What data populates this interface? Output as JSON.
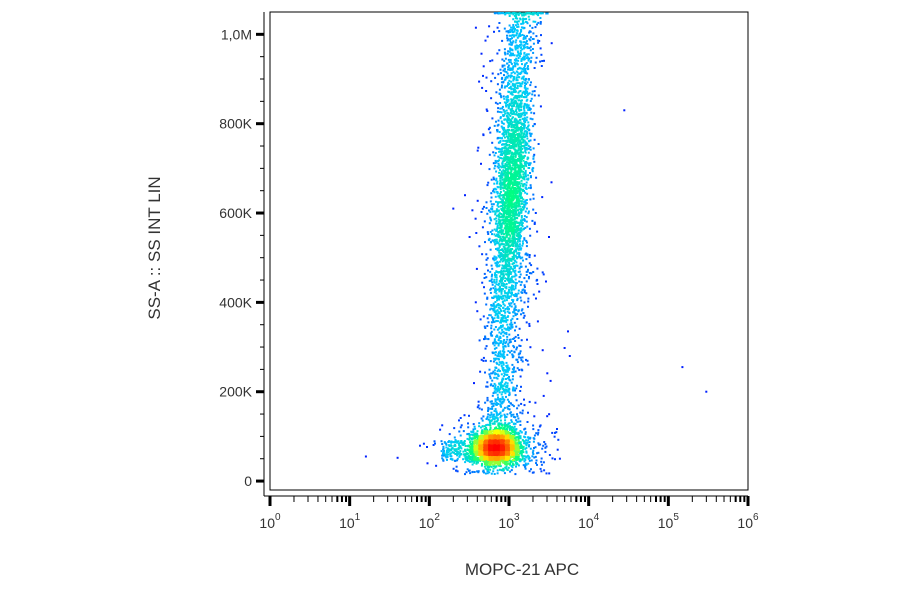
{
  "chart_data": {
    "type": "scatter",
    "title": "",
    "xlabel": "MOPC-21 APC",
    "ylabel": "SS-A :: SS INT LIN",
    "x_scale": "log",
    "xlim": [
      1,
      1000000
    ],
    "ylim": [
      -20000,
      1050000
    ],
    "x_ticks": [
      {
        "value": 1,
        "base": "10",
        "exp": "0"
      },
      {
        "value": 10,
        "base": "10",
        "exp": "1"
      },
      {
        "value": 100,
        "base": "10",
        "exp": "2"
      },
      {
        "value": 1000,
        "base": "10",
        "exp": "3"
      },
      {
        "value": 10000,
        "base": "10",
        "exp": "4"
      },
      {
        "value": 100000,
        "base": "10",
        "exp": "5"
      },
      {
        "value": 1000000,
        "base": "10",
        "exp": "6"
      }
    ],
    "y_ticks": [
      {
        "value": 0,
        "label": "0"
      },
      {
        "value": 200000,
        "label": "200K"
      },
      {
        "value": 400000,
        "label": "400K"
      },
      {
        "value": 600000,
        "label": "600K"
      },
      {
        "value": 800000,
        "label": "800K"
      },
      {
        "value": 1000000,
        "label": "1,0M"
      }
    ],
    "grid": false,
    "colormap": [
      "#0000ff",
      "#00c8ff",
      "#00ff80",
      "#ffff00",
      "#ff8000",
      "#ff0000"
    ],
    "populations": [
      {
        "name": "low-SS cluster",
        "x_center": 700,
        "y_center": 75000,
        "density": "highest"
      },
      {
        "name": "high-SS band",
        "x_center": 1300,
        "y_center": 650000,
        "density": "high"
      }
    ],
    "outliers": [
      {
        "x": 16,
        "y": 55000
      },
      {
        "x": 40,
        "y": 52000
      },
      {
        "x": 200,
        "y": 610000
      },
      {
        "x": 280,
        "y": 640000
      },
      {
        "x": 28000,
        "y": 830000
      },
      {
        "x": 150000,
        "y": 255000
      },
      {
        "x": 300000,
        "y": 200000
      },
      {
        "x": 5500,
        "y": 335000
      },
      {
        "x": 5800,
        "y": 280000
      }
    ]
  }
}
